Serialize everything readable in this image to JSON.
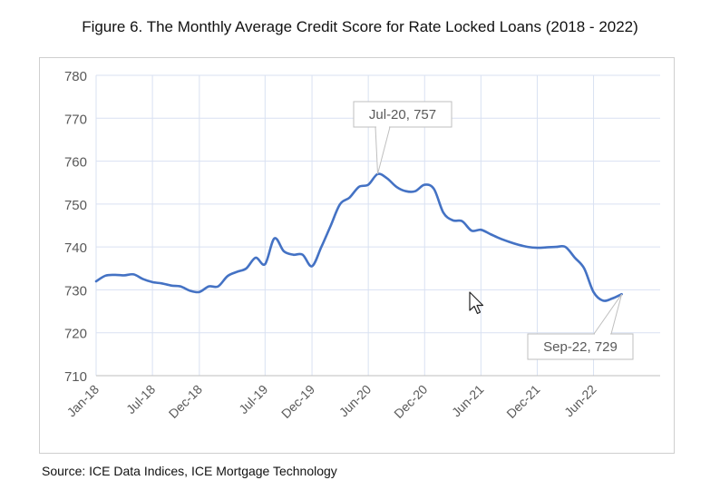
{
  "figure": {
    "title": "Figure 6. The Monthly Average Credit Score for Rate Locked Loans (2018 - 2022)",
    "source": "Source: ICE Data Indices, ICE Mortgage Technology"
  },
  "chart_data": {
    "type": "line",
    "title": "Figure 6. The Monthly Average Credit Score for Rate Locked Loans (2018 - 2022)",
    "xlabel": "",
    "ylabel": "",
    "ylim": [
      710,
      780
    ],
    "yticks": [
      "710",
      "720",
      "730",
      "740",
      "750",
      "760",
      "770",
      "780"
    ],
    "xtick_labels": [
      "Jan-18",
      "Jul-18",
      "Dec-18",
      "Jul-19",
      "Dec-19",
      "Jun-20",
      "Dec-20",
      "Jun-21",
      "Dec-21",
      "Jun-22"
    ],
    "grid": true,
    "line_color": "#4472c4",
    "grid_color": "#d9e1f2",
    "series": [
      {
        "x": [
          "Jan-18",
          "Feb-18",
          "Mar-18",
          "Apr-18",
          "May-18",
          "Jun-18",
          "Jul-18",
          "Aug-18",
          "Sep-18",
          "Oct-18",
          "Nov-18",
          "Dec-18",
          "Jan-19",
          "Feb-19",
          "Mar-19",
          "Apr-19",
          "May-19",
          "Jun-19",
          "Jul-19",
          "Aug-19",
          "Sep-19",
          "Oct-19",
          "Nov-19",
          "Dec-19",
          "Jan-20",
          "Feb-20",
          "Mar-20",
          "Apr-20",
          "May-20",
          "Jun-20",
          "Jul-20",
          "Aug-20",
          "Sep-20",
          "Oct-20",
          "Nov-20",
          "Dec-20",
          "Jan-21",
          "Feb-21",
          "Mar-21",
          "Apr-21",
          "May-21",
          "Jun-21",
          "Jul-21",
          "Aug-21",
          "Sep-21",
          "Oct-21",
          "Nov-21",
          "Dec-21",
          "Jan-22",
          "Feb-22",
          "Mar-22",
          "Apr-22",
          "May-22",
          "Jun-22",
          "Jul-22",
          "Aug-22",
          "Sep-22"
        ],
        "values": [
          732,
          733.3,
          733.5,
          733.4,
          733.6,
          732.5,
          731.8,
          731.5,
          731,
          730.8,
          729.8,
          729.5,
          730.8,
          730.8,
          733.2,
          734.2,
          735,
          737.5,
          736,
          742,
          739,
          738.2,
          738.2,
          735.5,
          740,
          745,
          750,
          751.5,
          754,
          754.5,
          757,
          756,
          754,
          753,
          753,
          754.5,
          753.5,
          748,
          746.2,
          746,
          743.8,
          744,
          743,
          742,
          741.2,
          740.5,
          740,
          739.8,
          739.9,
          740,
          740,
          737.5,
          735,
          729.5,
          727.5,
          728,
          729
        ]
      }
    ],
    "annotations": [
      {
        "text": "Jul-20, 757",
        "x": "Jul-20",
        "y": 757
      },
      {
        "text": "Sep-22, 729",
        "x": "Sep-22",
        "y": 729
      }
    ]
  }
}
